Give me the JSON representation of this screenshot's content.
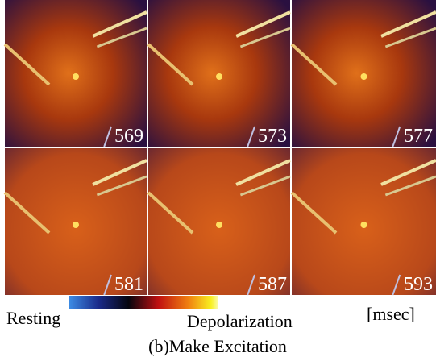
{
  "panels": [
    {
      "time": "569"
    },
    {
      "time": "573"
    },
    {
      "time": "577"
    },
    {
      "time": "581"
    },
    {
      "time": "587"
    },
    {
      "time": "593"
    }
  ],
  "colorbar": {
    "low_label": "Resting",
    "high_label": "Depolarization",
    "unit": "[msec]"
  },
  "caption": "(b)Make Excitation"
}
